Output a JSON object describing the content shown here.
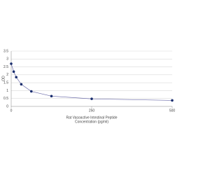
{
  "chart_data": {
    "type": "line",
    "ylabel": "OD",
    "xlabel": [
      "Rat Vasoactive Intestinal Peptide",
      "Concentration (pg/ml)"
    ],
    "x": [
      0,
      7.8,
      15.6,
      31.25,
      62.5,
      125,
      250,
      500
    ],
    "series": [
      {
        "color": "#1a2e6e",
        "values": [
          2.7,
          2.2,
          1.85,
          1.4,
          0.95,
          0.65,
          0.48,
          0.38
        ]
      }
    ],
    "line_color": "#6a6aa8",
    "xlim": [
      0,
      500
    ],
    "xticks": [
      0,
      250,
      500
    ],
    "ylim": [
      0,
      3.5
    ],
    "yticks": [
      0,
      0.5,
      1,
      1.5,
      2,
      2.5,
      3,
      3.5
    ],
    "grid": true
  }
}
